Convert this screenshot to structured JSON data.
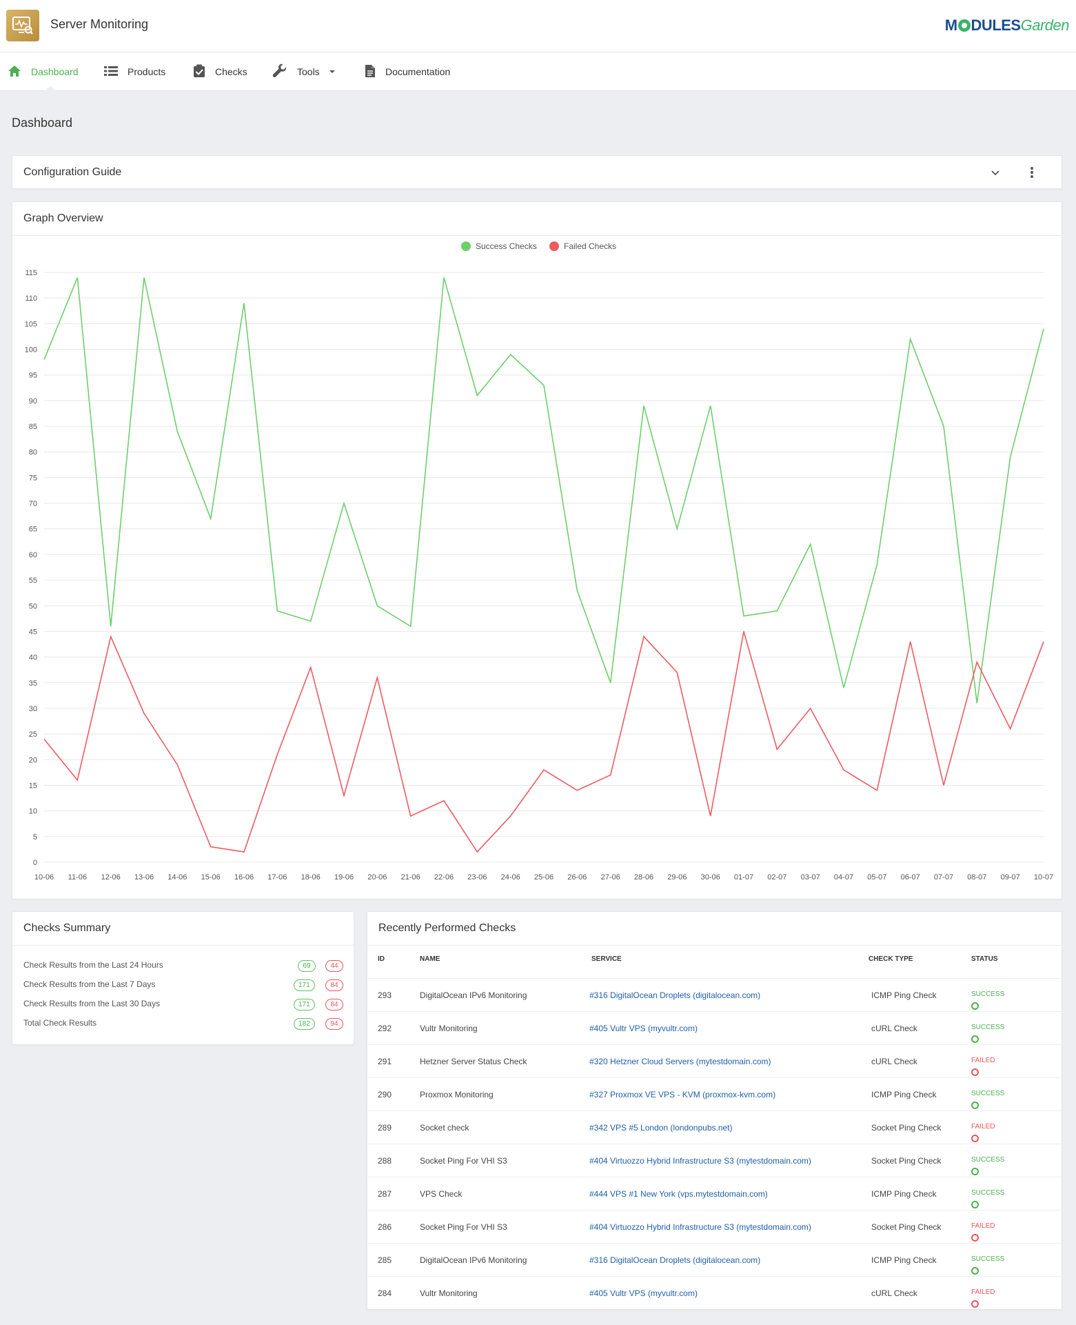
{
  "header": {
    "app_title": "Server Monitoring",
    "brand_left": "M",
    "brand_mid": "DULES",
    "brand_right": "Garden"
  },
  "nav": {
    "items": [
      {
        "label": "Dashboard",
        "icon": "home-icon",
        "active": true
      },
      {
        "label": "Products",
        "icon": "list-icon"
      },
      {
        "label": "Checks",
        "icon": "clipboard-check-icon"
      },
      {
        "label": "Tools",
        "icon": "wrench-icon",
        "dropdown": true
      },
      {
        "label": "Documentation",
        "icon": "document-icon"
      }
    ]
  },
  "page": {
    "title": "Dashboard"
  },
  "config_guide": {
    "title": "Configuration Guide"
  },
  "graph": {
    "title": "Graph Overview"
  },
  "chart_data": {
    "type": "line",
    "x": [
      "10-06",
      "11-06",
      "12-06",
      "13-06",
      "14-06",
      "15-06",
      "16-06",
      "17-06",
      "18-06",
      "19-06",
      "20-06",
      "21-06",
      "22-06",
      "23-06",
      "24-06",
      "25-06",
      "26-06",
      "27-06",
      "28-06",
      "29-06",
      "30-06",
      "01-07",
      "02-07",
      "03-07",
      "04-07",
      "05-07",
      "06-07",
      "07-07",
      "08-07",
      "09-07",
      "10-07"
    ],
    "series": [
      {
        "name": "Success Checks",
        "color": "#6ccf6c",
        "values": [
          98,
          114,
          46,
          114,
          84,
          67,
          109,
          49,
          47,
          70,
          50,
          46,
          114,
          91,
          99,
          93,
          53,
          35,
          89,
          65,
          89,
          48,
          49,
          62,
          34,
          58,
          102,
          85,
          31,
          79,
          104
        ]
      },
      {
        "name": "Failed Checks",
        "color": "#ec5a62",
        "values": [
          24,
          16,
          44,
          29,
          19,
          3,
          2,
          21,
          38,
          13,
          36,
          9,
          12,
          2,
          9,
          18,
          14,
          17,
          44,
          37,
          9,
          45,
          22,
          30,
          18,
          14,
          43,
          15,
          39,
          26,
          43
        ]
      }
    ],
    "ylim": [
      0,
      115
    ],
    "yticks": [
      0,
      5,
      10,
      15,
      20,
      25,
      30,
      35,
      40,
      45,
      50,
      55,
      60,
      65,
      70,
      75,
      80,
      85,
      90,
      95,
      100,
      105,
      110,
      115
    ],
    "grid": true,
    "legend_position": "top-center"
  },
  "summary": {
    "title": "Checks Summary",
    "rows": [
      {
        "label": "Check Results from the Last 24 Hours",
        "success": "69",
        "failed": "44"
      },
      {
        "label": "Check Results from the Last 7 Days",
        "success": "171",
        "failed": "84"
      },
      {
        "label": "Check Results from the Last 30 Days",
        "success": "171",
        "failed": "84"
      },
      {
        "label": "Total Check Results",
        "success": "182",
        "failed": "94"
      }
    ]
  },
  "recent": {
    "title": "Recently Performed Checks",
    "headers": {
      "id": "ID",
      "name": "NAME",
      "service": "SERVICE",
      "check_type": "CHECK TYPE",
      "status": "STATUS"
    },
    "rows": [
      {
        "id": "293",
        "name": "DigitalOcean IPv6 Monitoring",
        "service": "#316 DigitalOcean Droplets (digitalocean.com)",
        "check_type": "ICMP Ping Check",
        "status": "SUCCESS"
      },
      {
        "id": "292",
        "name": "Vultr Monitoring",
        "service": "#405 Vultr VPS (myvultr.com)",
        "check_type": "cURL Check",
        "status": "SUCCESS"
      },
      {
        "id": "291",
        "name": "Hetzner Server Status Check",
        "service": "#320 Hetzner Cloud Servers (mytestdomain.com)",
        "check_type": "cURL Check",
        "status": "FAILED"
      },
      {
        "id": "290",
        "name": "Proxmox Monitoring",
        "service": "#327 Proxmox VE VPS - KVM (proxmox-kvm.com)",
        "check_type": "ICMP Ping Check",
        "status": "SUCCESS"
      },
      {
        "id": "289",
        "name": "Socket check",
        "service": "#342 VPS #5 London (londonpubs.net)",
        "check_type": "Socket Ping Check",
        "status": "FAILED"
      },
      {
        "id": "288",
        "name": "Socket Ping For VHI S3",
        "service": "#404 Virtuozzo Hybrid Infrastructure S3 (mytestdomain.com)",
        "check_type": "Socket Ping Check",
        "status": "SUCCESS"
      },
      {
        "id": "287",
        "name": "VPS Check",
        "service": "#444 VPS #1 New York (vps.mytestdomain.com)",
        "check_type": "ICMP Ping Check",
        "status": "SUCCESS"
      },
      {
        "id": "286",
        "name": "Socket Ping For VHI S3",
        "service": "#404 Virtuozzo Hybrid Infrastructure S3 (mytestdomain.com)",
        "check_type": "Socket Ping Check",
        "status": "FAILED"
      },
      {
        "id": "285",
        "name": "DigitalOcean IPv6 Monitoring",
        "service": "#316 DigitalOcean Droplets (digitalocean.com)",
        "check_type": "ICMP Ping Check",
        "status": "SUCCESS"
      },
      {
        "id": "284",
        "name": "Vultr Monitoring",
        "service": "#405 Vultr VPS (myvultr.com)",
        "check_type": "cURL Check",
        "status": "FAILED"
      }
    ]
  },
  "colors": {
    "accent": "#4cb050",
    "failed": "#e9545b",
    "link": "#1f5fa8"
  }
}
